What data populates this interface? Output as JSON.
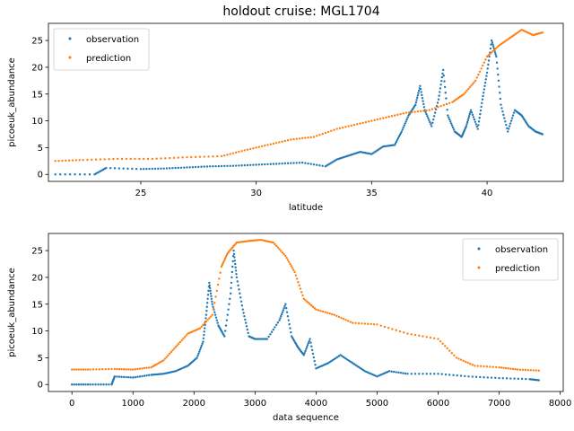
{
  "figure": {
    "title": "holdout cruise: MGL1704"
  },
  "colors": {
    "observation": "#1f77b4",
    "prediction": "#ff7f0e",
    "axes": "#000000",
    "background": "#ffffff"
  },
  "chart_data": [
    {
      "type": "scatter",
      "title": "holdout cruise: MGL1704",
      "xlabel": "latitude",
      "ylabel": "picoeuk_abundance",
      "xlim": [
        21.0,
        43.3
      ],
      "ylim": [
        -1.3,
        28.2
      ],
      "xticks": [
        25,
        30,
        35,
        40
      ],
      "yticks": [
        0,
        5,
        10,
        15,
        20,
        25
      ],
      "grid": false,
      "legend": {
        "position": "top-left",
        "entries": [
          "observation",
          "prediction"
        ]
      },
      "series": [
        {
          "name": "observation",
          "x": [
            21.3,
            23.0,
            23.5,
            25.0,
            26.0,
            27.0,
            28.0,
            29.0,
            30.0,
            31.0,
            32.0,
            33.0,
            33.5,
            34.0,
            34.5,
            35.0,
            35.5,
            36.0,
            36.3,
            36.6,
            36.9,
            37.1,
            37.3,
            37.6,
            37.9,
            38.1,
            38.3,
            38.6,
            38.9,
            39.1,
            39.3,
            39.6,
            39.8,
            40.0,
            40.2,
            40.4,
            40.6,
            40.9,
            41.2,
            41.5,
            41.8,
            42.1,
            42.4
          ],
          "y": [
            0.0,
            0.0,
            1.2,
            1.0,
            1.1,
            1.3,
            1.5,
            1.6,
            1.8,
            2.0,
            2.2,
            1.5,
            2.8,
            3.5,
            4.2,
            3.8,
            5.2,
            5.5,
            8.0,
            11.0,
            13.0,
            16.5,
            12.0,
            9.0,
            14.0,
            19.5,
            11.0,
            8.0,
            7.0,
            9.0,
            12.0,
            8.5,
            14.0,
            19.0,
            25.0,
            22.0,
            13.0,
            8.0,
            12.0,
            11.0,
            9.0,
            8.0,
            7.5
          ]
        },
        {
          "name": "prediction",
          "x": [
            21.3,
            22.5,
            24.0,
            25.5,
            27.0,
            28.5,
            29.5,
            30.5,
            31.5,
            32.5,
            33.5,
            34.5,
            35.5,
            36.5,
            37.5,
            38.5,
            39.0,
            39.5,
            40.0,
            40.5,
            41.0,
            41.5,
            42.0,
            42.4
          ],
          "y": [
            2.5,
            2.7,
            2.9,
            2.9,
            3.2,
            3.4,
            4.5,
            5.5,
            6.5,
            7.0,
            8.5,
            9.5,
            10.5,
            11.5,
            12.0,
            13.5,
            15.0,
            17.5,
            22.0,
            24.0,
            25.5,
            27.0,
            26.0,
            26.5
          ]
        }
      ]
    },
    {
      "type": "scatter",
      "title": "",
      "xlabel": "data sequence",
      "ylabel": "picoeuk_abundance",
      "xlim": [
        -385,
        8050
      ],
      "ylim": [
        -1.3,
        28.2
      ],
      "xticks": [
        0,
        1000,
        2000,
        3000,
        4000,
        5000,
        6000,
        7000,
        8000
      ],
      "yticks": [
        0,
        5,
        10,
        15,
        20,
        25
      ],
      "grid": false,
      "legend": {
        "position": "top-right",
        "entries": [
          "observation",
          "prediction"
        ]
      },
      "series": [
        {
          "name": "observation",
          "x": [
            0,
            300,
            650,
            700,
            1000,
            1300,
            1500,
            1700,
            1900,
            2050,
            2150,
            2200,
            2250,
            2300,
            2400,
            2500,
            2600,
            2650,
            2700,
            2800,
            2900,
            3000,
            3200,
            3400,
            3500,
            3600,
            3700,
            3800,
            3900,
            4000,
            4200,
            4400,
            4600,
            4800,
            5000,
            5200,
            5500,
            6000,
            6500,
            7000,
            7500,
            7650
          ],
          "y": [
            0.0,
            0.0,
            0.0,
            1.5,
            1.3,
            1.8,
            2.0,
            2.5,
            3.5,
            5.0,
            8.0,
            13.0,
            19.0,
            15.0,
            11.0,
            9.0,
            17.0,
            25.0,
            20.0,
            14.0,
            9.0,
            8.5,
            8.5,
            12.0,
            15.0,
            9.0,
            7.0,
            5.5,
            8.5,
            3.0,
            4.0,
            5.5,
            4.0,
            2.5,
            1.5,
            2.5,
            2.0,
            2.0,
            1.5,
            1.2,
            1.0,
            0.8
          ]
        },
        {
          "name": "prediction",
          "x": [
            0,
            300,
            700,
            1000,
            1300,
            1500,
            1700,
            1900,
            2100,
            2300,
            2450,
            2550,
            2700,
            2900,
            3100,
            3300,
            3500,
            3650,
            3800,
            4000,
            4300,
            4600,
            5000,
            5500,
            6000,
            6300,
            6600,
            7000,
            7300,
            7650
          ],
          "y": [
            2.8,
            2.8,
            2.9,
            2.8,
            3.2,
            4.5,
            7.0,
            9.5,
            10.5,
            13.0,
            22.0,
            24.5,
            26.5,
            26.8,
            27.0,
            26.5,
            24.0,
            21.0,
            16.0,
            14.0,
            13.0,
            11.5,
            11.2,
            9.5,
            8.5,
            5.0,
            3.5,
            3.2,
            2.8,
            2.6
          ]
        }
      ]
    }
  ]
}
